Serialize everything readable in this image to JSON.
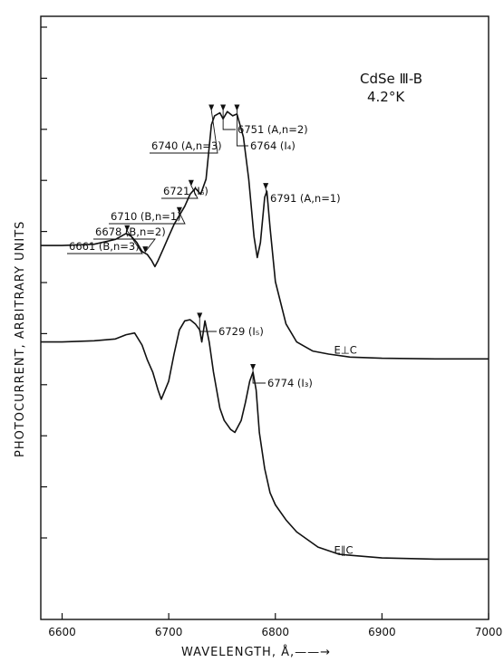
{
  "chart_data": {
    "type": "line",
    "title": "",
    "sample_label": "CdSe Ⅲ-B",
    "temperature_label": "4.2°K",
    "xlabel": "WAVELENGTH, Å,——→",
    "ylabel": "PHOTOCURRENT, ARBITRARY UNITS",
    "xlim": [
      6580,
      7000
    ],
    "ylim": [
      0,
      10
    ],
    "x_ticks": [
      "6600",
      "6700",
      "6800",
      "6900",
      "7000"
    ],
    "grid": false,
    "series": [
      {
        "name": "E⊥C",
        "points": [
          [
            6580,
            6.2
          ],
          [
            6600,
            6.2
          ],
          [
            6630,
            6.22
          ],
          [
            6650,
            6.3
          ],
          [
            6660,
            6.4
          ],
          [
            6665,
            6.35
          ],
          [
            6670,
            6.25
          ],
          [
            6675,
            6.1
          ],
          [
            6680,
            6.05
          ],
          [
            6684,
            5.95
          ],
          [
            6687,
            5.85
          ],
          [
            6690,
            5.95
          ],
          [
            6695,
            6.15
          ],
          [
            6700,
            6.35
          ],
          [
            6705,
            6.55
          ],
          [
            6710,
            6.7
          ],
          [
            6715,
            6.85
          ],
          [
            6720,
            7.05
          ],
          [
            6725,
            7.15
          ],
          [
            6730,
            7.05
          ],
          [
            6735,
            7.3
          ],
          [
            6740,
            8.2
          ],
          [
            6743,
            8.35
          ],
          [
            6748,
            8.4
          ],
          [
            6751,
            8.3
          ],
          [
            6755,
            8.42
          ],
          [
            6760,
            8.35
          ],
          [
            6764,
            8.38
          ],
          [
            6770,
            8.0
          ],
          [
            6775,
            7.3
          ],
          [
            6780,
            6.35
          ],
          [
            6783,
            6.0
          ],
          [
            6786,
            6.25
          ],
          [
            6790,
            7.0
          ],
          [
            6792,
            7.1
          ],
          [
            6795,
            6.5
          ],
          [
            6800,
            5.6
          ],
          [
            6810,
            4.9
          ],
          [
            6820,
            4.6
          ],
          [
            6835,
            4.45
          ],
          [
            6850,
            4.4
          ],
          [
            6870,
            4.35
          ],
          [
            6900,
            4.33
          ],
          [
            6950,
            4.32
          ],
          [
            7000,
            4.32
          ]
        ]
      },
      {
        "name": "E∥C",
        "points": [
          [
            6580,
            4.6
          ],
          [
            6600,
            4.6
          ],
          [
            6630,
            4.62
          ],
          [
            6650,
            4.65
          ],
          [
            6660,
            4.72
          ],
          [
            6668,
            4.75
          ],
          [
            6675,
            4.55
          ],
          [
            6680,
            4.3
          ],
          [
            6685,
            4.1
          ],
          [
            6690,
            3.8
          ],
          [
            6693,
            3.65
          ],
          [
            6700,
            3.95
          ],
          [
            6705,
            4.4
          ],
          [
            6710,
            4.8
          ],
          [
            6715,
            4.95
          ],
          [
            6720,
            4.97
          ],
          [
            6725,
            4.9
          ],
          [
            6729,
            4.8
          ],
          [
            6731,
            4.6
          ],
          [
            6734,
            4.95
          ],
          [
            6738,
            4.6
          ],
          [
            6742,
            4.1
          ],
          [
            6748,
            3.5
          ],
          [
            6752,
            3.3
          ],
          [
            6758,
            3.15
          ],
          [
            6762,
            3.1
          ],
          [
            6768,
            3.3
          ],
          [
            6772,
            3.6
          ],
          [
            6776,
            3.95
          ],
          [
            6779,
            4.1
          ],
          [
            6782,
            3.8
          ],
          [
            6785,
            3.1
          ],
          [
            6790,
            2.5
          ],
          [
            6795,
            2.1
          ],
          [
            6800,
            1.9
          ],
          [
            6810,
            1.65
          ],
          [
            6820,
            1.45
          ],
          [
            6840,
            1.2
          ],
          [
            6860,
            1.08
          ],
          [
            6900,
            1.02
          ],
          [
            6950,
            1.0
          ],
          [
            7000,
            1.0
          ]
        ]
      }
    ],
    "annotations": [
      {
        "label": "6661 (B,n=3)",
        "x": 6661,
        "y": 6.4
      },
      {
        "label": "6678 (B,n=2)",
        "x": 6678,
        "y": 6.05
      },
      {
        "label": "6710 (B,n=1)",
        "x": 6710,
        "y": 6.7
      },
      {
        "label": "6721 (I₆)",
        "x": 6721,
        "y": 7.15
      },
      {
        "label": "6740 (A,n=3)",
        "x": 6740,
        "y": 8.4
      },
      {
        "label": "6751 (A,n=2)",
        "x": 6751,
        "y": 8.4
      },
      {
        "label": "6764 (I₄)",
        "x": 6764,
        "y": 8.4
      },
      {
        "label": "6791 (A,n=1)",
        "x": 6791,
        "y": 7.1
      },
      {
        "label": "6729 (I₅)",
        "x": 6729,
        "y": 4.95
      },
      {
        "label": "6774 (I₃)",
        "x": 6779,
        "y": 4.1
      }
    ]
  }
}
